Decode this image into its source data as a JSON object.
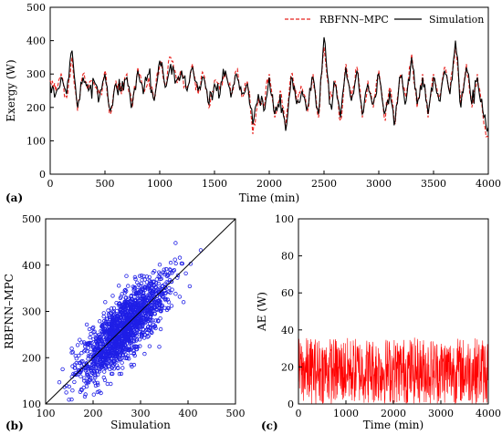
{
  "chart_data": [
    {
      "panel": "(a)",
      "type": "line",
      "xlabel": "Time (min)",
      "ylabel": "Exergy (W)",
      "xlim": [
        0,
        4000
      ],
      "ylim": [
        0,
        500
      ],
      "xticks": [
        0,
        500,
        1000,
        1500,
        2000,
        2500,
        3000,
        3500,
        4000
      ],
      "yticks": [
        0,
        100,
        200,
        300,
        400,
        500
      ],
      "grid": false,
      "legend": "top-right",
      "series": [
        {
          "name": "RBFNN–MPC",
          "color": "#e8231f",
          "style": "dashed",
          "x": [
            0,
            50,
            100,
            150,
            200,
            250,
            300,
            350,
            400,
            450,
            500,
            550,
            600,
            650,
            700,
            750,
            800,
            850,
            900,
            950,
            1000,
            1050,
            1100,
            1150,
            1200,
            1250,
            1300,
            1350,
            1400,
            1450,
            1500,
            1550,
            1600,
            1650,
            1700,
            1750,
            1800,
            1850,
            1900,
            1950,
            2000,
            2050,
            2100,
            2150,
            2200,
            2250,
            2300,
            2350,
            2400,
            2450,
            2500,
            2550,
            2600,
            2650,
            2700,
            2750,
            2800,
            2850,
            2900,
            2950,
            3000,
            3050,
            3100,
            3150,
            3200,
            3250,
            3300,
            3350,
            3400,
            3450,
            3500,
            3550,
            3600,
            3650,
            3700,
            3750,
            3800,
            3850,
            3900,
            3950,
            4000
          ],
          "y": [
            280,
            250,
            300,
            230,
            350,
            190,
            300,
            260,
            270,
            240,
            310,
            180,
            280,
            240,
            300,
            200,
            320,
            250,
            290,
            230,
            330,
            270,
            350,
            290,
            300,
            260,
            330,
            240,
            300,
            200,
            280,
            250,
            300,
            240,
            310,
            230,
            280,
            120,
            230,
            200,
            300,
            170,
            250,
            140,
            300,
            220,
            260,
            190,
            300,
            170,
            380,
            220,
            280,
            160,
            330,
            230,
            320,
            170,
            280,
            200,
            310,
            170,
            260,
            150,
            300,
            230,
            360,
            200,
            300,
            170,
            300,
            230,
            320,
            250,
            390,
            210,
            330,
            200,
            300,
            180,
            110
          ]
        },
        {
          "name": "Simulation",
          "color": "#000000",
          "style": "solid",
          "x": [
            0,
            50,
            100,
            150,
            200,
            250,
            300,
            350,
            400,
            450,
            500,
            550,
            600,
            650,
            700,
            750,
            800,
            850,
            900,
            950,
            1000,
            1050,
            1100,
            1150,
            1200,
            1250,
            1300,
            1350,
            1400,
            1450,
            1500,
            1550,
            1600,
            1650,
            1700,
            1750,
            1800,
            1850,
            1900,
            1950,
            2000,
            2050,
            2100,
            2150,
            2200,
            2250,
            2300,
            2350,
            2400,
            2450,
            2500,
            2550,
            2600,
            2650,
            2700,
            2750,
            2800,
            2850,
            2900,
            2950,
            3000,
            3050,
            3100,
            3150,
            3200,
            3250,
            3300,
            3350,
            3400,
            3450,
            3500,
            3550,
            3600,
            3650,
            3700,
            3750,
            3800,
            3850,
            3900,
            3950,
            4000
          ],
          "y": [
            270,
            240,
            290,
            240,
            370,
            200,
            290,
            250,
            280,
            230,
            300,
            190,
            270,
            250,
            290,
            210,
            310,
            240,
            300,
            220,
            340,
            260,
            330,
            280,
            310,
            250,
            320,
            250,
            290,
            210,
            270,
            240,
            310,
            230,
            300,
            240,
            270,
            150,
            240,
            190,
            290,
            180,
            240,
            130,
            290,
            210,
            250,
            200,
            290,
            180,
            410,
            210,
            270,
            170,
            320,
            220,
            310,
            180,
            270,
            210,
            300,
            180,
            250,
            160,
            290,
            220,
            350,
            210,
            290,
            180,
            290,
            220,
            310,
            240,
            400,
            200,
            320,
            210,
            290,
            190,
            140
          ]
        }
      ]
    },
    {
      "panel": "(b)",
      "type": "scatter",
      "xlabel": "Simulation",
      "ylabel": "RBFNN–MPC",
      "xlim": [
        100,
        500
      ],
      "ylim": [
        100,
        500
      ],
      "xticks": [
        100,
        200,
        300,
        400,
        500
      ],
      "yticks": [
        100,
        200,
        300,
        400,
        500
      ],
      "grid": false,
      "color": "#1f1fe6",
      "reference_line": "y = x",
      "center": [
        265,
        265
      ],
      "spread": [
        45,
        40
      ],
      "points": 1600
    },
    {
      "panel": "(c)",
      "type": "line",
      "xlabel": "Time (min)",
      "ylabel": "AE (W)",
      "xlim": [
        0,
        4000
      ],
      "ylim": [
        0,
        100
      ],
      "xticks": [
        0,
        1000,
        2000,
        3000,
        4000
      ],
      "yticks": [
        0,
        20,
        40,
        60,
        80,
        100
      ],
      "grid": false,
      "color": "#ff0000",
      "value_range": [
        0,
        36
      ]
    }
  ]
}
